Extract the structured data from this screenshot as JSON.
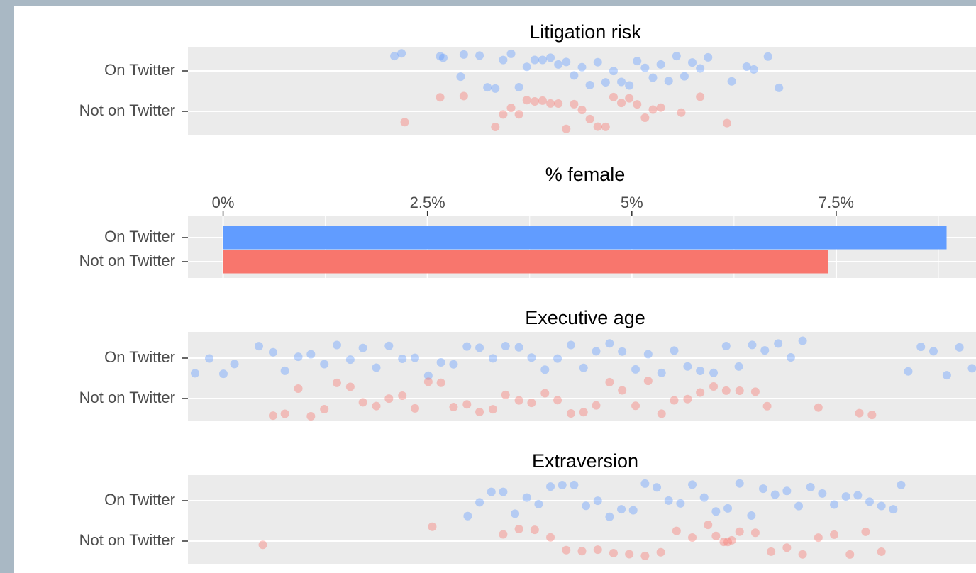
{
  "chart_data": [
    {
      "type": "strip",
      "title": "Litigation risk",
      "categories": [
        "On Twitter",
        "Not on Twitter"
      ],
      "xlim": [
        0,
        100
      ],
      "series": [
        {
          "color": "#619cff",
          "values": [
            26.2,
            27.1,
            32,
            32.4,
            34.6,
            35,
            37,
            38,
            39,
            40,
            41,
            42,
            43,
            44,
            45,
            46,
            47,
            48,
            49,
            50,
            51,
            52,
            53,
            54,
            55,
            56,
            57,
            58,
            59,
            60,
            61,
            62,
            63,
            64,
            65,
            66,
            69,
            70.9,
            71.8,
            73.6,
            75
          ]
        },
        {
          "color": "#f8766d",
          "values": [
            27.5,
            32,
            35,
            39,
            40,
            41,
            42,
            43,
            44,
            45,
            46,
            47,
            48,
            49,
            50,
            51,
            52,
            53,
            54,
            55,
            56,
            57,
            58,
            59,
            60,
            62.6,
            65,
            68.4
          ]
        }
      ]
    },
    {
      "type": "bar",
      "title": "% female",
      "categories": [
        "On Twitter",
        "Not on Twitter"
      ],
      "values": [
        8.85,
        7.4
      ],
      "colors": [
        "#619cff",
        "#f8766d"
      ],
      "xlim": [
        -0.43,
        9.21
      ],
      "xticks": [
        {
          "value": 0,
          "label": "0%"
        },
        {
          "value": 2.5,
          "label": "2.5%"
        },
        {
          "value": 5,
          "label": "5%"
        },
        {
          "value": 7.5,
          "label": "7.5%"
        }
      ],
      "minor_xticks": [
        1.25,
        3.75,
        6.25,
        8.75
      ],
      "grid": true
    },
    {
      "type": "strip",
      "title": "Executive age",
      "categories": [
        "On Twitter",
        "Not on Twitter"
      ],
      "xlim": [
        0,
        100
      ],
      "series": [
        {
          "color": "#619cff",
          "values": [
            0.9,
            2.7,
            4.5,
            5.9,
            9.0,
            10.8,
            12.3,
            14.0,
            15.6,
            17.3,
            18.9,
            20.6,
            22.2,
            23.9,
            25.5,
            27.2,
            28.8,
            30.5,
            32.1,
            33.7,
            35.4,
            37.0,
            38.7,
            40.3,
            42.0,
            43.6,
            45.3,
            46.9,
            48.6,
            50.2,
            51.8,
            53.5,
            55.1,
            56.8,
            58.4,
            60.1,
            61.7,
            63.4,
            65.0,
            66.7,
            68.3,
            69.9,
            71.6,
            73.2,
            74.9,
            76.5,
            78.0,
            91.4,
            93.0,
            94.6,
            96.3,
            97.9,
            99.5
          ]
        },
        {
          "color": "#f8766d",
          "values": [
            10.8,
            12.3,
            14.0,
            15.6,
            17.3,
            18.9,
            20.6,
            22.2,
            23.9,
            25.5,
            27.2,
            28.8,
            30.5,
            32.1,
            33.7,
            35.4,
            37.0,
            38.7,
            40.3,
            42.0,
            43.6,
            45.3,
            46.9,
            48.6,
            50.2,
            51.8,
            53.5,
            55.1,
            56.8,
            58.4,
            60.1,
            61.7,
            63.4,
            65.0,
            66.7,
            68.3,
            70.0,
            72.0,
            73.5,
            80.0,
            85.2,
            86.8
          ]
        }
      ]
    },
    {
      "type": "strip",
      "title": "Extraversion",
      "categories": [
        "On Twitter",
        "Not on Twitter"
      ],
      "xlim": [
        0,
        100
      ],
      "series": [
        {
          "color": "#619cff",
          "values": [
            35.5,
            37,
            38.5,
            40,
            41.5,
            43,
            44.5,
            46,
            47.5,
            49,
            50.5,
            52,
            53.5,
            55,
            56.5,
            58,
            59.5,
            61,
            62.5,
            64,
            65.5,
            67,
            68.5,
            70,
            71.5,
            73,
            74.5,
            76,
            77.5,
            79,
            80.5,
            82,
            83.5,
            85,
            86.5,
            88,
            89.5,
            90.5
          ]
        },
        {
          "color": "#f8766d",
          "values": [
            9.5,
            31,
            40,
            42,
            44,
            46,
            48,
            50,
            52,
            54,
            56,
            58,
            60,
            62,
            64,
            66,
            67,
            68,
            68.5,
            69,
            70,
            72,
            74,
            76,
            78,
            80,
            82,
            84,
            86,
            88
          ]
        }
      ]
    }
  ]
}
